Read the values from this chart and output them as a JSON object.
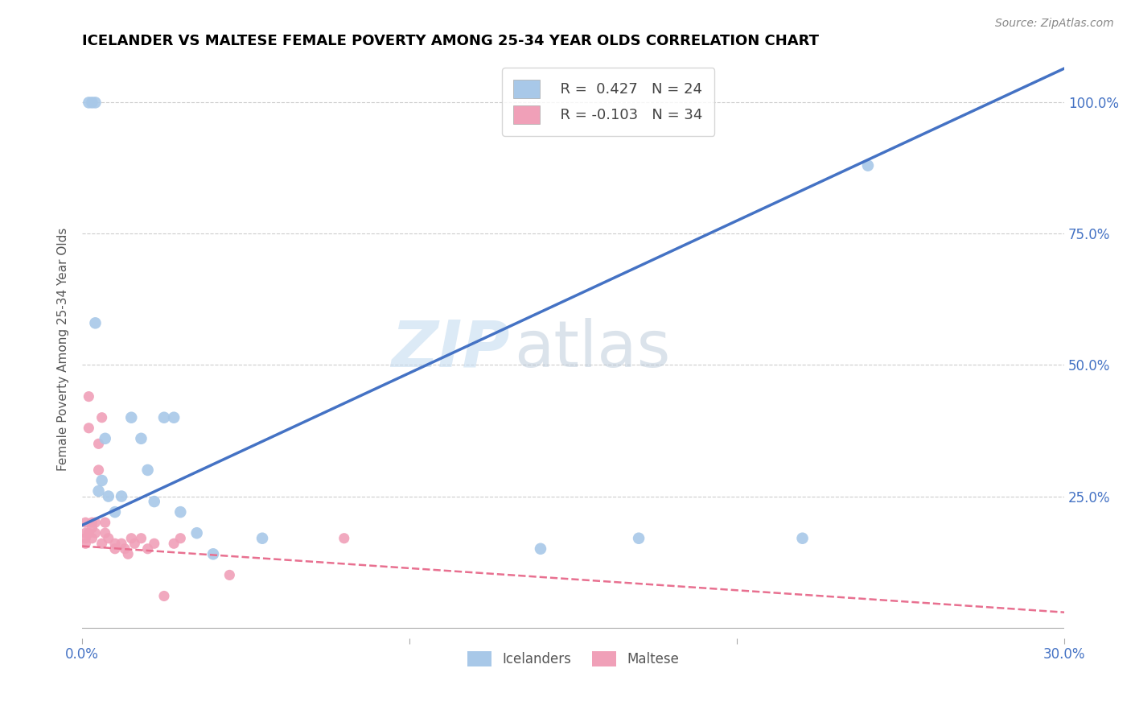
{
  "title": "ICELANDER VS MALTESE FEMALE POVERTY AMONG 25-34 YEAR OLDS CORRELATION CHART",
  "source": "Source: ZipAtlas.com",
  "xlabel": "",
  "ylabel": "Female Poverty Among 25-34 Year Olds",
  "xlim": [
    0.0,
    0.3
  ],
  "ylim": [
    -0.02,
    1.08
  ],
  "xticks": [
    0.0,
    0.1,
    0.2,
    0.3
  ],
  "xtick_labels": [
    "0.0%",
    "",
    "",
    "30.0%"
  ],
  "ytick_labels_right": [
    "25.0%",
    "50.0%",
    "75.0%",
    "100.0%"
  ],
  "yticks": [
    0.25,
    0.5,
    0.75,
    1.0
  ],
  "blue_color": "#A8C8E8",
  "pink_color": "#F0A0B8",
  "blue_line_color": "#4472C4",
  "pink_line_color": "#E87090",
  "watermark_zip": "ZIP",
  "watermark_atlas": "atlas",
  "legend_blue_R": "R =  0.427",
  "legend_blue_N": "N = 24",
  "legend_pink_R": "R = -0.103",
  "legend_pink_N": "N = 34",
  "icelander_x": [
    0.002,
    0.003,
    0.004,
    0.004,
    0.005,
    0.006,
    0.007,
    0.008,
    0.01,
    0.012,
    0.015,
    0.018,
    0.02,
    0.022,
    0.025,
    0.028,
    0.03,
    0.035,
    0.04,
    0.055,
    0.14,
    0.17,
    0.22,
    0.24
  ],
  "icelander_y": [
    1.0,
    1.0,
    1.0,
    0.58,
    0.26,
    0.28,
    0.36,
    0.25,
    0.22,
    0.25,
    0.4,
    0.36,
    0.3,
    0.24,
    0.4,
    0.4,
    0.22,
    0.18,
    0.14,
    0.17,
    0.15,
    0.17,
    0.17,
    0.88
  ],
  "maltese_x": [
    0.001,
    0.001,
    0.001,
    0.001,
    0.002,
    0.002,
    0.002,
    0.003,
    0.003,
    0.003,
    0.004,
    0.004,
    0.005,
    0.005,
    0.006,
    0.006,
    0.007,
    0.007,
    0.008,
    0.01,
    0.01,
    0.012,
    0.013,
    0.014,
    0.015,
    0.016,
    0.018,
    0.02,
    0.022,
    0.025,
    0.028,
    0.03,
    0.045,
    0.08
  ],
  "maltese_y": [
    0.2,
    0.18,
    0.17,
    0.16,
    0.44,
    0.38,
    0.18,
    0.2,
    0.19,
    0.17,
    0.2,
    0.18,
    0.35,
    0.3,
    0.4,
    0.16,
    0.2,
    0.18,
    0.17,
    0.16,
    0.15,
    0.16,
    0.15,
    0.14,
    0.17,
    0.16,
    0.17,
    0.15,
    0.16,
    0.06,
    0.16,
    0.17,
    0.1,
    0.17
  ],
  "blue_marker_size": 110,
  "pink_marker_size": 90,
  "blue_line_intercept": 0.195,
  "blue_line_slope": 2.9,
  "pink_line_intercept": 0.155,
  "pink_line_slope": -0.42
}
